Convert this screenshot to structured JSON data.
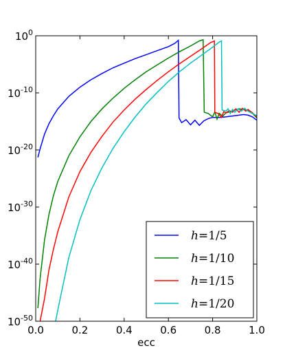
{
  "chart_data": {
    "type": "line",
    "xlabel": "ecc",
    "ylabel": "",
    "xlim": [
      0.0,
      1.0
    ],
    "ylim": [
      1e-50,
      1
    ],
    "yscale": "log",
    "grid": false,
    "legend_position": "lower-right",
    "x_ticks": [
      "0.0",
      "0.2",
      "0.4",
      "0.6",
      "0.8",
      "1.0"
    ],
    "y_ticks": [
      {
        "base": "10",
        "exp": "-50",
        "value": -50
      },
      {
        "base": "10",
        "exp": "-40",
        "value": -40
      },
      {
        "base": "10",
        "exp": "-30",
        "value": -30
      },
      {
        "base": "10",
        "exp": "-20",
        "value": -20
      },
      {
        "base": "10",
        "exp": "-10",
        "value": -10
      },
      {
        "base": "10",
        "exp": "0",
        "value": 0
      }
    ],
    "series": [
      {
        "name": "h=1/5",
        "label_prefix": "h",
        "label_value": "1/5",
        "color": "#0000ff",
        "points": [
          [
            0.01,
            -21.3
          ],
          [
            0.02,
            -19.8
          ],
          [
            0.04,
            -17.2
          ],
          [
            0.06,
            -15.4
          ],
          [
            0.08,
            -14.0
          ],
          [
            0.1,
            -12.8
          ],
          [
            0.15,
            -10.6
          ],
          [
            0.2,
            -9.0
          ],
          [
            0.25,
            -7.7
          ],
          [
            0.3,
            -6.6
          ],
          [
            0.35,
            -5.6
          ],
          [
            0.4,
            -4.8
          ],
          [
            0.45,
            -4.0
          ],
          [
            0.5,
            -3.3
          ],
          [
            0.55,
            -2.6
          ],
          [
            0.6,
            -1.9
          ],
          [
            0.63,
            -1.3
          ],
          [
            0.645,
            -0.8
          ],
          [
            0.648,
            -14.4
          ],
          [
            0.66,
            -15.2
          ],
          [
            0.68,
            -14.7
          ],
          [
            0.7,
            -15.6
          ],
          [
            0.72,
            -14.8
          ],
          [
            0.74,
            -15.7
          ],
          [
            0.76,
            -14.9
          ],
          [
            0.78,
            -14.5
          ],
          [
            0.8,
            -14.3
          ],
          [
            0.83,
            -14.3
          ],
          [
            0.86,
            -14.2
          ],
          [
            0.88,
            -14.1
          ],
          [
            0.9,
            -14.0
          ],
          [
            0.92,
            -13.9
          ],
          [
            0.94,
            -13.8
          ],
          [
            0.96,
            -13.9
          ],
          [
            0.98,
            -14.2
          ],
          [
            1.0,
            -14.8
          ]
        ]
      },
      {
        "name": "h=1/10",
        "label_prefix": "h",
        "label_value": "1/10",
        "color": "#008000",
        "points": [
          [
            0.01,
            -47.7
          ],
          [
            0.02,
            -42.5
          ],
          [
            0.04,
            -35.7
          ],
          [
            0.06,
            -31.3
          ],
          [
            0.08,
            -28.0
          ],
          [
            0.1,
            -25.5
          ],
          [
            0.15,
            -21.0
          ],
          [
            0.2,
            -17.7
          ],
          [
            0.25,
            -15.0
          ],
          [
            0.3,
            -12.8
          ],
          [
            0.35,
            -10.9
          ],
          [
            0.4,
            -9.2
          ],
          [
            0.45,
            -7.7
          ],
          [
            0.5,
            -6.3
          ],
          [
            0.55,
            -5.1
          ],
          [
            0.6,
            -3.9
          ],
          [
            0.65,
            -2.8
          ],
          [
            0.7,
            -1.8
          ],
          [
            0.74,
            -0.9
          ],
          [
            0.757,
            -0.7
          ],
          [
            0.762,
            -13.4
          ],
          [
            0.78,
            -13.6
          ],
          [
            0.8,
            -14.2
          ],
          [
            0.81,
            -13.3
          ],
          [
            0.82,
            -14.6
          ],
          [
            0.83,
            -13.6
          ],
          [
            0.845,
            -14.1
          ],
          [
            0.86,
            -13.5
          ],
          [
            0.88,
            -13.3
          ],
          [
            0.9,
            -13.0
          ],
          [
            0.92,
            -12.8
          ],
          [
            0.94,
            -12.9
          ],
          [
            0.96,
            -13.1
          ],
          [
            0.98,
            -13.6
          ],
          [
            1.0,
            -14.4
          ]
        ]
      },
      {
        "name": "h=1/15",
        "label_prefix": "h",
        "label_value": "1/15",
        "color": "#ff0000",
        "points": [
          [
            0.02,
            -50.0
          ],
          [
            0.04,
            -46.0
          ],
          [
            0.06,
            -41.0
          ],
          [
            0.08,
            -37.4
          ],
          [
            0.1,
            -34.3
          ],
          [
            0.15,
            -28.2
          ],
          [
            0.2,
            -23.8
          ],
          [
            0.25,
            -20.4
          ],
          [
            0.3,
            -17.6
          ],
          [
            0.35,
            -15.1
          ],
          [
            0.4,
            -13.0
          ],
          [
            0.45,
            -11.1
          ],
          [
            0.5,
            -9.4
          ],
          [
            0.55,
            -7.8
          ],
          [
            0.6,
            -6.3
          ],
          [
            0.65,
            -4.9
          ],
          [
            0.7,
            -3.6
          ],
          [
            0.75,
            -2.3
          ],
          [
            0.79,
            -1.2
          ],
          [
            0.808,
            -0.9
          ],
          [
            0.81,
            -13.4
          ],
          [
            0.825,
            -13.6
          ],
          [
            0.84,
            -14.3
          ],
          [
            0.85,
            -13.3
          ],
          [
            0.86,
            -13.5
          ],
          [
            0.875,
            -13.1
          ],
          [
            0.89,
            -13.4
          ],
          [
            0.905,
            -12.8
          ],
          [
            0.92,
            -13.4
          ],
          [
            0.935,
            -12.7
          ],
          [
            0.95,
            -13.2
          ],
          [
            0.96,
            -12.9
          ],
          [
            0.98,
            -13.5
          ],
          [
            1.0,
            -14.2
          ]
        ]
      },
      {
        "name": "h=1/20",
        "label_prefix": "h",
        "label_value": "1/20",
        "color": "#00bfbf",
        "points": [
          [
            0.09,
            -50.0
          ],
          [
            0.1,
            -48.0
          ],
          [
            0.15,
            -38.8
          ],
          [
            0.2,
            -32.2
          ],
          [
            0.25,
            -27.1
          ],
          [
            0.3,
            -23.1
          ],
          [
            0.35,
            -19.7
          ],
          [
            0.4,
            -16.8
          ],
          [
            0.45,
            -14.2
          ],
          [
            0.5,
            -11.9
          ],
          [
            0.55,
            -9.9
          ],
          [
            0.6,
            -8.0
          ],
          [
            0.65,
            -6.3
          ],
          [
            0.7,
            -4.8
          ],
          [
            0.75,
            -3.4
          ],
          [
            0.8,
            -2.0
          ],
          [
            0.83,
            -1.1
          ],
          [
            0.84,
            -0.9
          ],
          [
            0.843,
            -13.0
          ],
          [
            0.86,
            -13.2
          ],
          [
            0.87,
            -12.8
          ],
          [
            0.88,
            -13.6
          ],
          [
            0.89,
            -12.9
          ],
          [
            0.9,
            -13.4
          ],
          [
            0.915,
            -12.8
          ],
          [
            0.93,
            -13.2
          ],
          [
            0.945,
            -12.7
          ],
          [
            0.96,
            -13.2
          ],
          [
            0.98,
            -13.6
          ],
          [
            1.0,
            -14.0
          ]
        ]
      }
    ]
  }
}
